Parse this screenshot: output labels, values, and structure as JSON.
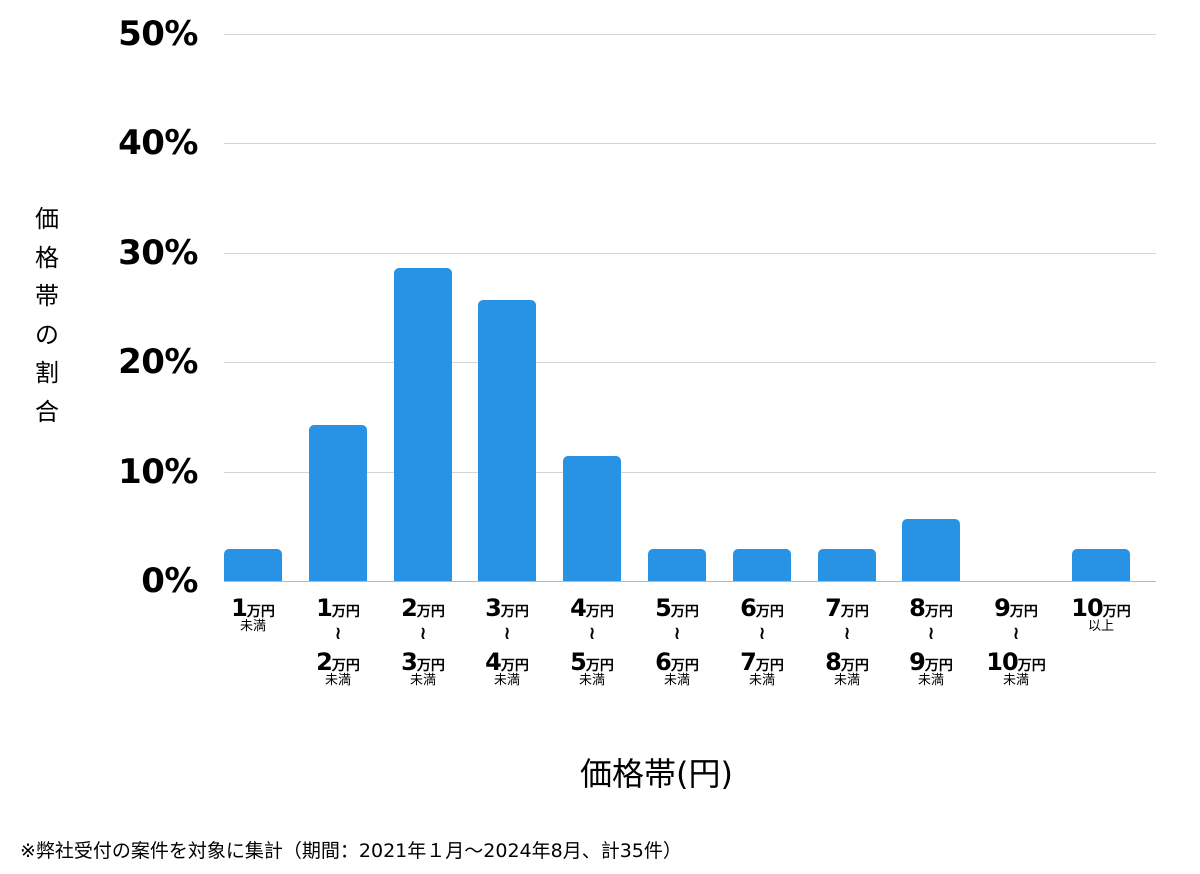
{
  "chart_data": {
    "type": "bar",
    "title": "",
    "xlabel": "価格帯(円)",
    "ylabel": "価格帯の割合",
    "ylim": [
      0,
      50
    ],
    "yticks": [
      "0%",
      "10%",
      "20%",
      "30%",
      "40%",
      "50%"
    ],
    "grid": true,
    "legend": null,
    "bar_color": "#2893e4",
    "categories": [
      "1万円未満",
      "1万円〜2万円未満",
      "2万円〜3万円未満",
      "3万円〜4万円未満",
      "4万円〜5万円未満",
      "5万円〜6万円未満",
      "6万円〜7万円未満",
      "7万円〜8万円未満",
      "8万円〜9万円未満",
      "9万円〜10万円未満",
      "10万円以上"
    ],
    "values": [
      2.9,
      14.3,
      28.6,
      25.7,
      11.4,
      2.9,
      2.9,
      2.9,
      5.7,
      0,
      2.9
    ],
    "footnote": "※弊社受付の案件を対象に集計（期間：2021年１月〜2024年8月、計35件）"
  },
  "axis": {
    "y_title_chars": [
      "価",
      "格",
      "帯",
      "の",
      "割",
      "合"
    ],
    "x_title": "価格帯(円)",
    "y_ticks": [
      {
        "label": "50%",
        "value": 50
      },
      {
        "label": "40%",
        "value": 40
      },
      {
        "label": "30%",
        "value": 30
      },
      {
        "label": "20%",
        "value": 20
      },
      {
        "label": "10%",
        "value": 10
      },
      {
        "label": "0%",
        "value": 0
      }
    ]
  },
  "x_labels": [
    {
      "from": "1",
      "to": null,
      "unit": "万円",
      "suffix": "未満"
    },
    {
      "from": "1",
      "to": "2",
      "unit": "万円",
      "suffix": "未満"
    },
    {
      "from": "2",
      "to": "3",
      "unit": "万円",
      "suffix": "未満"
    },
    {
      "from": "3",
      "to": "4",
      "unit": "万円",
      "suffix": "未満"
    },
    {
      "from": "4",
      "to": "5",
      "unit": "万円",
      "suffix": "未満"
    },
    {
      "from": "5",
      "to": "6",
      "unit": "万円",
      "suffix": "未満"
    },
    {
      "from": "6",
      "to": "7",
      "unit": "万円",
      "suffix": "未満"
    },
    {
      "from": "7",
      "to": "8",
      "unit": "万円",
      "suffix": "未満"
    },
    {
      "from": "8",
      "to": "9",
      "unit": "万円",
      "suffix": "未満"
    },
    {
      "from": "9",
      "to": "10",
      "unit": "万円",
      "suffix": "未満"
    },
    {
      "from": "10",
      "to": null,
      "unit": "万円",
      "suffix": "以上"
    }
  ],
  "tilde_glyph": "〜",
  "footnote": "※弊社受付の案件を対象に集計（期間：2021年１月〜2024年8月、計35件）"
}
